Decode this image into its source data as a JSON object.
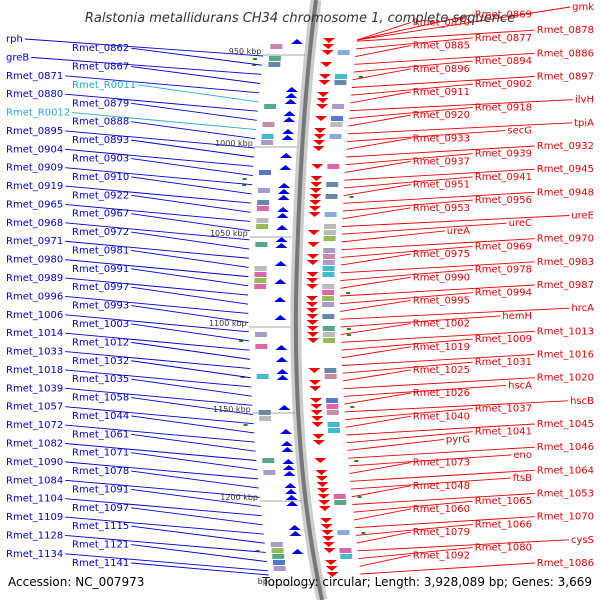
{
  "title": "Ralstonia metallidurans CH34 chromosome 1, complete sequence",
  "accession": "Accession: NC_007973",
  "topology": "Topology: circular; Length: 3,928,089 bp; Genes: 3,669",
  "colors": {
    "forward_label": "#0000cc",
    "reverse_label": "#ee0000",
    "rna_label": "#22aacc",
    "backbone": "#888888",
    "tick_marker": "#228822"
  },
  "scale_ticks": [
    "950 kbp",
    "1000 kbp",
    "1050 kbp",
    "1100 kbp",
    "1150 kbp",
    "1200 kbp",
    "bp"
  ],
  "left_labels": [
    {
      "text": "rph",
      "kind": "forward"
    },
    {
      "text": "Rmet_0862",
      "kind": "forward"
    },
    {
      "text": "greB",
      "kind": "forward"
    },
    {
      "text": "Rmet_0867",
      "kind": "forward"
    },
    {
      "text": "Rmet_0871",
      "kind": "forward"
    },
    {
      "text": "Rmet_R0011",
      "kind": "rna"
    },
    {
      "text": "Rmet_0880",
      "kind": "forward"
    },
    {
      "text": "Rmet_0879",
      "kind": "forward"
    },
    {
      "text": "Rmet_R0012",
      "kind": "rna"
    },
    {
      "text": "Rmet_0888",
      "kind": "forward"
    },
    {
      "text": "Rmet_0895",
      "kind": "forward"
    },
    {
      "text": "Rmet_0893",
      "kind": "forward"
    },
    {
      "text": "Rmet_0904",
      "kind": "forward"
    },
    {
      "text": "Rmet_0903",
      "kind": "forward"
    },
    {
      "text": "Rmet_0909",
      "kind": "forward"
    },
    {
      "text": "Rmet_0910",
      "kind": "forward"
    },
    {
      "text": "Rmet_0919",
      "kind": "forward"
    },
    {
      "text": "Rmet_0922",
      "kind": "forward"
    },
    {
      "text": "Rmet_0965",
      "kind": "forward"
    },
    {
      "text": "Rmet_0967",
      "kind": "forward"
    },
    {
      "text": "Rmet_0968",
      "kind": "forward"
    },
    {
      "text": "Rmet_0972",
      "kind": "forward"
    },
    {
      "text": "Rmet_0971",
      "kind": "forward"
    },
    {
      "text": "Rmet_0981",
      "kind": "forward"
    },
    {
      "text": "Rmet_0980",
      "kind": "forward"
    },
    {
      "text": "Rmet_0991",
      "kind": "forward"
    },
    {
      "text": "Rmet_0989",
      "kind": "forward"
    },
    {
      "text": "Rmet_0997",
      "kind": "forward"
    },
    {
      "text": "Rmet_0996",
      "kind": "forward"
    },
    {
      "text": "Rmet_0993",
      "kind": "forward"
    },
    {
      "text": "Rmet_1006",
      "kind": "forward"
    },
    {
      "text": "Rmet_1003",
      "kind": "forward"
    },
    {
      "text": "Rmet_1014",
      "kind": "forward"
    },
    {
      "text": "Rmet_1012",
      "kind": "forward"
    },
    {
      "text": "Rmet_1033",
      "kind": "forward"
    },
    {
      "text": "Rmet_1032",
      "kind": "forward"
    },
    {
      "text": "Rmet_1018",
      "kind": "forward"
    },
    {
      "text": "Rmet_1035",
      "kind": "forward"
    },
    {
      "text": "Rmet_1039",
      "kind": "forward"
    },
    {
      "text": "Rmet_1058",
      "kind": "forward"
    },
    {
      "text": "Rmet_1057",
      "kind": "forward"
    },
    {
      "text": "Rmet_1044",
      "kind": "forward"
    },
    {
      "text": "Rmet_1072",
      "kind": "forward"
    },
    {
      "text": "Rmet_1061",
      "kind": "forward"
    },
    {
      "text": "Rmet_1082",
      "kind": "forward"
    },
    {
      "text": "Rmet_1071",
      "kind": "forward"
    },
    {
      "text": "Rmet_1090",
      "kind": "forward"
    },
    {
      "text": "Rmet_1078",
      "kind": "forward"
    },
    {
      "text": "Rmet_1084",
      "kind": "forward"
    },
    {
      "text": "Rmet_1091",
      "kind": "forward"
    },
    {
      "text": "Rmet_1104",
      "kind": "forward"
    },
    {
      "text": "Rmet_1097",
      "kind": "forward"
    },
    {
      "text": "Rmet_1109",
      "kind": "forward"
    },
    {
      "text": "Rmet_1115",
      "kind": "forward"
    },
    {
      "text": "Rmet_1128",
      "kind": "forward"
    },
    {
      "text": "Rmet_1121",
      "kind": "forward"
    },
    {
      "text": "Rmet_1134",
      "kind": "forward"
    },
    {
      "text": "Rmet_1141",
      "kind": "forward"
    }
  ],
  "right_labels": [
    {
      "text": "gmk"
    },
    {
      "text": "Rmet_0869"
    },
    {
      "text": "Rmet_0870"
    },
    {
      "text": "Rmet_0878"
    },
    {
      "text": "Rmet_0877"
    },
    {
      "text": "Rmet_0885"
    },
    {
      "text": "Rmet_0886"
    },
    {
      "text": "Rmet_0894"
    },
    {
      "text": "Rmet_0896"
    },
    {
      "text": "Rmet_0897"
    },
    {
      "text": "Rmet_0902"
    },
    {
      "text": "Rmet_0911"
    },
    {
      "text": "ilvH"
    },
    {
      "text": "Rmet_0918"
    },
    {
      "text": "Rmet_0920"
    },
    {
      "text": "tpiA"
    },
    {
      "text": "secG"
    },
    {
      "text": "Rmet_0933"
    },
    {
      "text": "Rmet_0932"
    },
    {
      "text": "Rmet_0939"
    },
    {
      "text": "Rmet_0937"
    },
    {
      "text": "Rmet_0945"
    },
    {
      "text": "Rmet_0941"
    },
    {
      "text": "Rmet_0951"
    },
    {
      "text": "Rmet_0948"
    },
    {
      "text": "Rmet_0956"
    },
    {
      "text": "Rmet_0953"
    },
    {
      "text": "ureE"
    },
    {
      "text": "ureC"
    },
    {
      "text": "ureA"
    },
    {
      "text": "Rmet_0970"
    },
    {
      "text": "Rmet_0969"
    },
    {
      "text": "Rmet_0975"
    },
    {
      "text": "Rmet_0983"
    },
    {
      "text": "Rmet_0978"
    },
    {
      "text": "Rmet_0990"
    },
    {
      "text": "Rmet_0987"
    },
    {
      "text": "Rmet_0994"
    },
    {
      "text": "Rmet_0995"
    },
    {
      "text": "hrcA"
    },
    {
      "text": "hemH"
    },
    {
      "text": "Rmet_1002"
    },
    {
      "text": "Rmet_1013"
    },
    {
      "text": "Rmet_1009"
    },
    {
      "text": "Rmet_1019"
    },
    {
      "text": "Rmet_1016"
    },
    {
      "text": "Rmet_1031"
    },
    {
      "text": "Rmet_1025"
    },
    {
      "text": "Rmet_1020"
    },
    {
      "text": "hscA"
    },
    {
      "text": "Rmet_1026"
    },
    {
      "text": "hscB"
    },
    {
      "text": "Rmet_1037"
    },
    {
      "text": "Rmet_1040"
    },
    {
      "text": "Rmet_1045"
    },
    {
      "text": "Rmet_1041"
    },
    {
      "text": "pyrG"
    },
    {
      "text": "Rmet_1046"
    },
    {
      "text": "eno"
    },
    {
      "text": "Rmet_1073"
    },
    {
      "text": "Rmet_1064"
    },
    {
      "text": "ftsB"
    },
    {
      "text": "Rmet_1048"
    },
    {
      "text": "Rmet_1053"
    },
    {
      "text": "Rmet_1065"
    },
    {
      "text": "Rmet_1060"
    },
    {
      "text": "Rmet_1070"
    },
    {
      "text": "Rmet_1066"
    },
    {
      "text": "Rmet_1079"
    },
    {
      "text": "cysS"
    },
    {
      "text": "Rmet_1080"
    },
    {
      "text": "Rmet_1092"
    },
    {
      "text": "Rmet_1086"
    }
  ]
}
